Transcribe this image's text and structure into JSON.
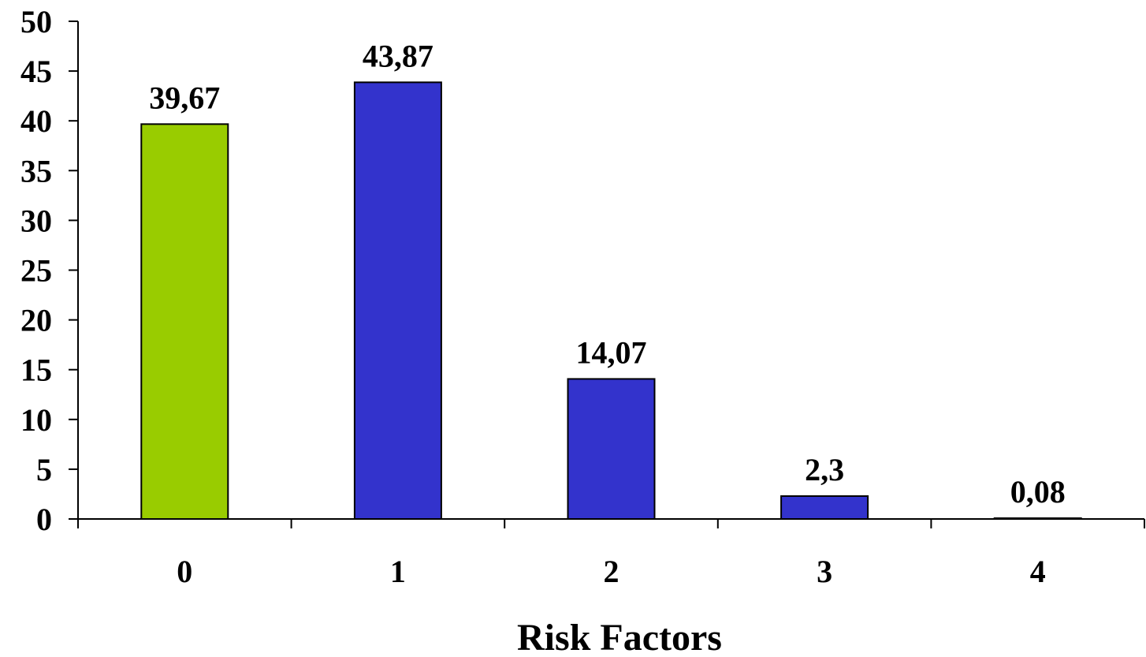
{
  "chart_data": {
    "type": "bar",
    "title": "",
    "xlabel": "Risk Factors",
    "ylabel": "",
    "categories": [
      "0",
      "1",
      "2",
      "3",
      "4"
    ],
    "values": [
      39.67,
      43.87,
      14.07,
      2.3,
      0.08
    ],
    "value_labels": [
      "39,67",
      "43,87",
      "14,07",
      "2,3",
      "0,08"
    ],
    "bar_colors": [
      "#99CC00",
      "#3333CC",
      "#3333CC",
      "#3333CC",
      "#3333CC"
    ],
    "ylim": [
      0,
      50
    ],
    "yticks": [
      0,
      5,
      10,
      15,
      20,
      25,
      30,
      35,
      40,
      45,
      50
    ],
    "grid": false,
    "legend": "none"
  }
}
